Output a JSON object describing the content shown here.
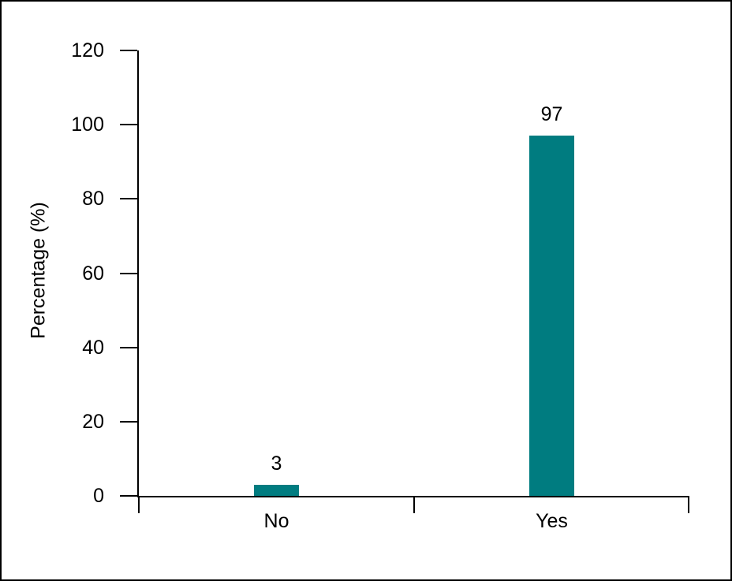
{
  "chart_data": {
    "type": "bar",
    "categories": [
      "No",
      "Yes"
    ],
    "values": [
      3,
      97
    ],
    "value_labels": [
      "3",
      "97"
    ],
    "title": "",
    "xlabel": "",
    "ylabel": "Percentage (%)",
    "ylim": [
      0,
      120
    ],
    "yticks": [
      0,
      20,
      40,
      60,
      80,
      100,
      120
    ],
    "grid": false,
    "legend": "none",
    "bar_color": "#007c80",
    "axis_color": "#000000",
    "text_color": "#000000",
    "background_color": "#ffffff",
    "frame_border_color": "#000000"
  }
}
